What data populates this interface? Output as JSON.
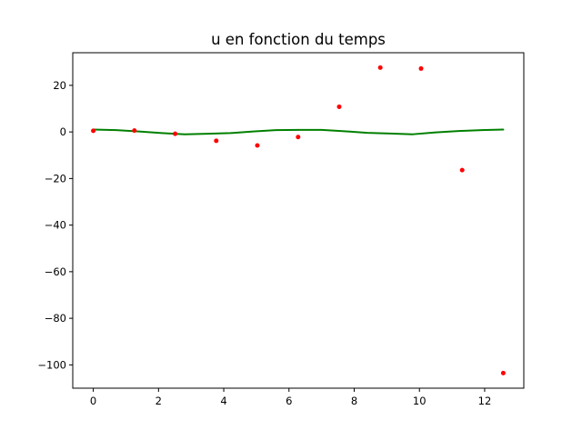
{
  "chart_data": {
    "type": "line",
    "title": "u en fonction du temps",
    "xlabel": "",
    "ylabel": "",
    "xlim": [
      -0.63,
      13.2
    ],
    "ylim": [
      -110,
      34
    ],
    "xticks": [
      0,
      2,
      4,
      6,
      8,
      10,
      12
    ],
    "xtick_labels": [
      "0",
      "2",
      "4",
      "6",
      "8",
      "10",
      "12"
    ],
    "yticks": [
      20,
      0,
      -20,
      -40,
      -60,
      -80,
      -100
    ],
    "ytick_labels": [
      "20",
      "0",
      "−20",
      "−40",
      "−60",
      "−80",
      "−100"
    ],
    "grid": false,
    "legend": "none",
    "series": [
      {
        "kind": "line",
        "color": "#008000",
        "x": [
          0,
          0.7,
          1.4,
          2.1,
          2.8,
          3.5,
          4.2,
          4.9,
          5.6,
          6.3,
          7.0,
          7.7,
          8.4,
          9.1,
          9.8,
          10.5,
          11.2,
          11.9,
          12.57
        ],
        "y": [
          1.0,
          0.8,
          0.2,
          -0.5,
          -1.0,
          -0.8,
          -0.5,
          0.2,
          0.8,
          0.9,
          0.9,
          0.3,
          -0.4,
          -0.7,
          -1.0,
          -0.2,
          0.4,
          0.8,
          1.0
        ]
      },
      {
        "kind": "scatter",
        "color": "#ff0000",
        "x": [
          0,
          1.26,
          2.51,
          3.77,
          5.03,
          6.28,
          7.54,
          8.8,
          10.05,
          11.31,
          12.57
        ],
        "y": [
          0.5,
          0.6,
          -0.8,
          -3.8,
          -5.8,
          -2.2,
          10.8,
          27.6,
          27.2,
          -16.4,
          -103.5
        ]
      }
    ]
  }
}
